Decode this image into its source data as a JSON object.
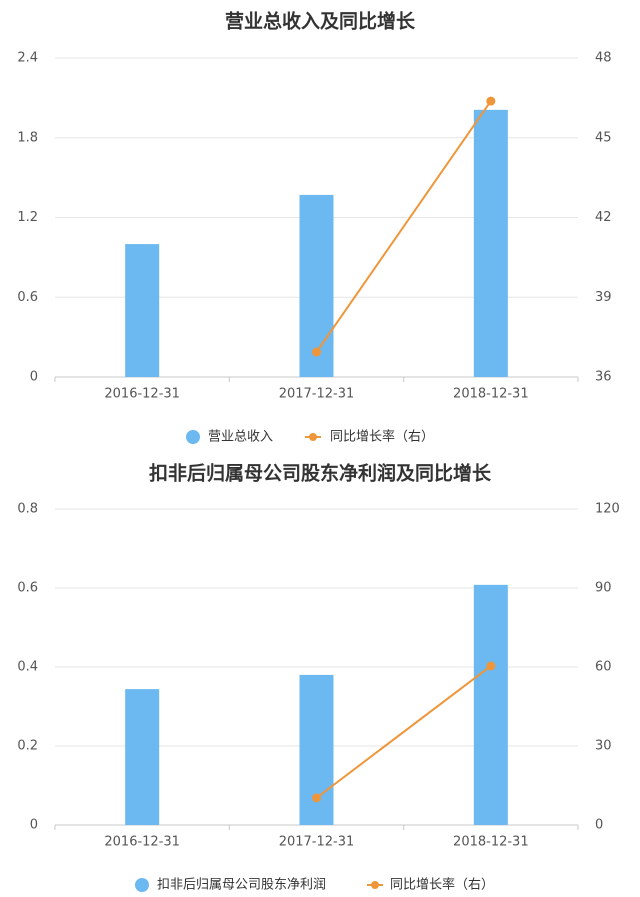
{
  "chart_data": [
    {
      "type": "bar-line",
      "title": "营业总收入及同比增长",
      "categories": [
        "2016-12-31",
        "2017-12-31",
        "2018-12-31"
      ],
      "series": [
        {
          "name": "营业总收入",
          "type": "bar",
          "color": "#6cb8f0",
          "values": [
            1.0,
            1.37,
            2.01
          ]
        },
        {
          "name": "同比增长率（右）",
          "type": "line",
          "axis": "y2",
          "color": "#f0963a",
          "values": [
            null,
            36.94,
            46.38
          ]
        }
      ],
      "ylim": [
        0,
        2.4
      ],
      "yticks": [
        0,
        0.6,
        1.2,
        1.8,
        2.4
      ],
      "y2lim": [
        36,
        48
      ],
      "y2ticks": [
        36,
        39,
        42,
        45,
        48
      ],
      "grid": true
    },
    {
      "type": "bar-line",
      "title": "扣非后归属母公司股东净利润及同比增长",
      "categories": [
        "2016-12-31",
        "2017-12-31",
        "2018-12-31"
      ],
      "series": [
        {
          "name": "扣非后归属母公司股东净利润",
          "type": "bar",
          "color": "#6cb8f0",
          "values": [
            0.344,
            0.38,
            0.608
          ]
        },
        {
          "name": "同比增长率（右）",
          "type": "line",
          "axis": "y2",
          "color": "#f0963a",
          "values": [
            null,
            10.3,
            60.4
          ]
        }
      ],
      "ylim": [
        0,
        0.8
      ],
      "yticks": [
        0,
        0.2,
        0.4,
        0.6,
        0.8
      ],
      "y2lim": [
        0,
        120
      ],
      "y2ticks": [
        0,
        30,
        60,
        90,
        120
      ],
      "grid": true
    }
  ]
}
